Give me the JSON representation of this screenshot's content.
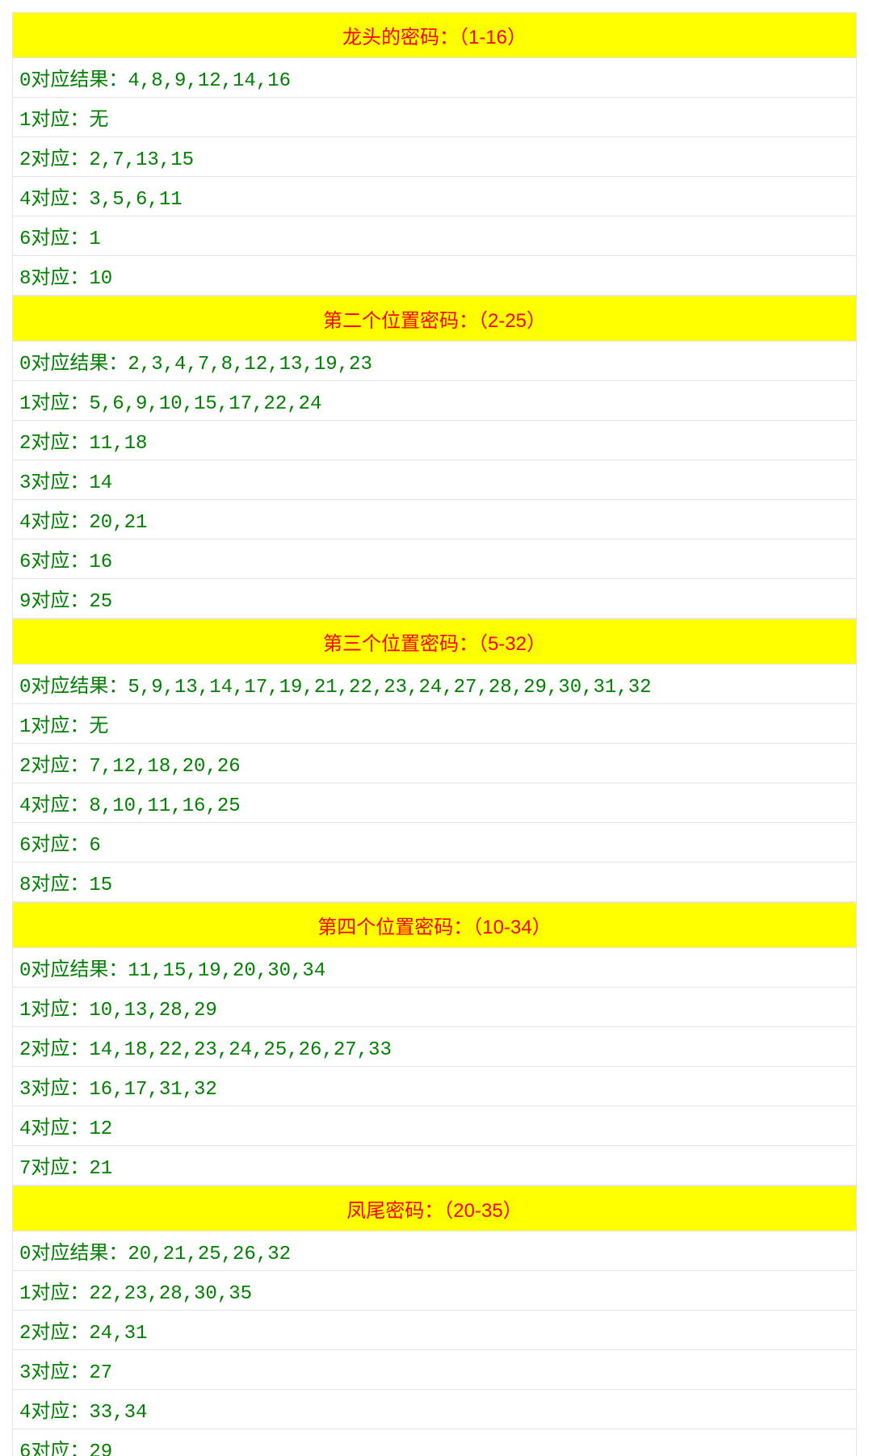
{
  "colors": {
    "header_bg": "#ffff00",
    "header_text": "#ff0000",
    "row_bg": "#ffffff",
    "row_text": "#008000",
    "border": "#e5e5e5"
  },
  "sections": [
    {
      "title": "龙头的密码：（1-16）",
      "rows": [
        "0对应结果：4,8,9,12,14,16",
        "1对应：无",
        "2对应：2,7,13,15",
        "4对应：3,5,6,11",
        "6对应：1",
        "8对应：10"
      ]
    },
    {
      "title": "第二个位置密码：（2-25）",
      "rows": [
        "0对应结果：2,3,4,7,8,12,13,19,23",
        "1对应：5,6,9,10,15,17,22,24",
        "2对应：11,18",
        "3对应：14",
        "4对应：20,21",
        "6对应：16",
        "9对应：25"
      ]
    },
    {
      "title": "第三个位置密码：（5-32）",
      "rows": [
        "0对应结果：5,9,13,14,17,19,21,22,23,24,27,28,29,30,31,32",
        "1对应：无",
        "2对应：7,12,18,20,26",
        "4对应：8,10,11,16,25",
        "6对应：6",
        "8对应：15"
      ]
    },
    {
      "title": "第四个位置密码：（10-34）",
      "rows": [
        "0对应结果：11,15,19,20,30,34",
        "1对应：10,13,28,29",
        "2对应：14,18,22,23,24,25,26,27,33",
        "3对应：16,17,31,32",
        "4对应：12",
        "7对应：21"
      ]
    },
    {
      "title": "凤尾密码：（20-35）",
      "rows": [
        "0对应结果：20,21,25,26,32",
        "1对应：22,23,28,30,35",
        "2对应：24,31",
        "3对应：27",
        "4对应：33,34",
        "6对应：29"
      ]
    }
  ]
}
